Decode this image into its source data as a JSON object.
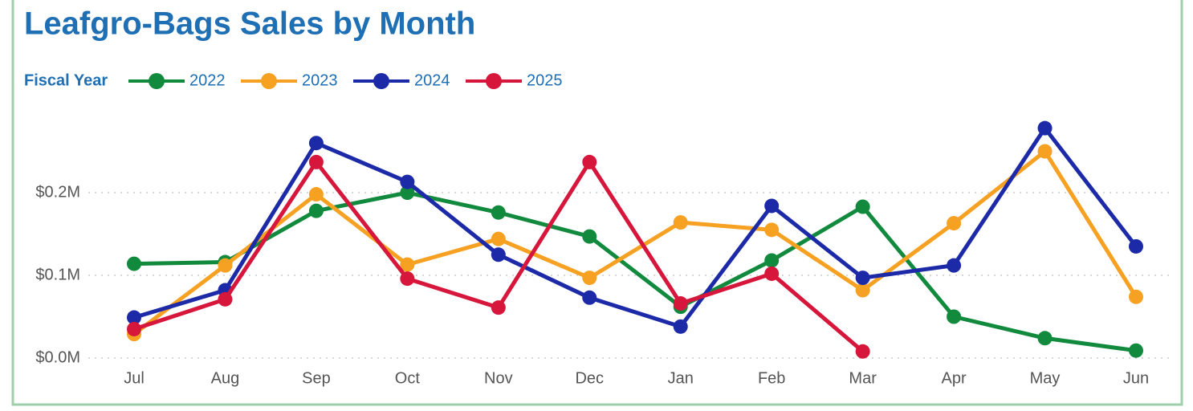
{
  "chart_data": {
    "type": "line",
    "title": "Leafgro-Bags Sales by Month",
    "legend_title": "Fiscal Year",
    "categories": [
      "Jul",
      "Aug",
      "Sep",
      "Oct",
      "Nov",
      "Dec",
      "Jan",
      "Feb",
      "Mar",
      "Apr",
      "May",
      "Jun"
    ],
    "series": [
      {
        "name": "2022",
        "color": "#118a3e",
        "values": [
          0.114,
          0.116,
          0.178,
          0.2,
          0.176,
          0.147,
          0.062,
          0.118,
          0.183,
          0.05,
          0.024,
          0.009
        ]
      },
      {
        "name": "2023",
        "color": "#f7a123",
        "values": [
          0.029,
          0.112,
          0.198,
          0.113,
          0.144,
          0.097,
          0.164,
          0.155,
          0.082,
          0.163,
          0.25,
          0.074
        ]
      },
      {
        "name": "2024",
        "color": "#1c2aa8",
        "values": [
          0.049,
          0.082,
          0.26,
          0.213,
          0.125,
          0.073,
          0.038,
          0.184,
          0.097,
          0.112,
          0.278,
          0.135
        ]
      },
      {
        "name": "2025",
        "color": "#d6163a",
        "values": [
          0.035,
          0.071,
          0.237,
          0.096,
          0.061,
          0.237,
          0.066,
          0.102,
          0.008,
          null,
          null,
          null
        ]
      }
    ],
    "ylim": [
      0,
      0.3
    ],
    "yticks": [
      {
        "value": 0,
        "label": "$0.0M"
      },
      {
        "value": 0.1,
        "label": "$0.1M"
      },
      {
        "value": 0.2,
        "label": "$0.2M"
      }
    ],
    "grid": true,
    "legend": "top-left"
  }
}
